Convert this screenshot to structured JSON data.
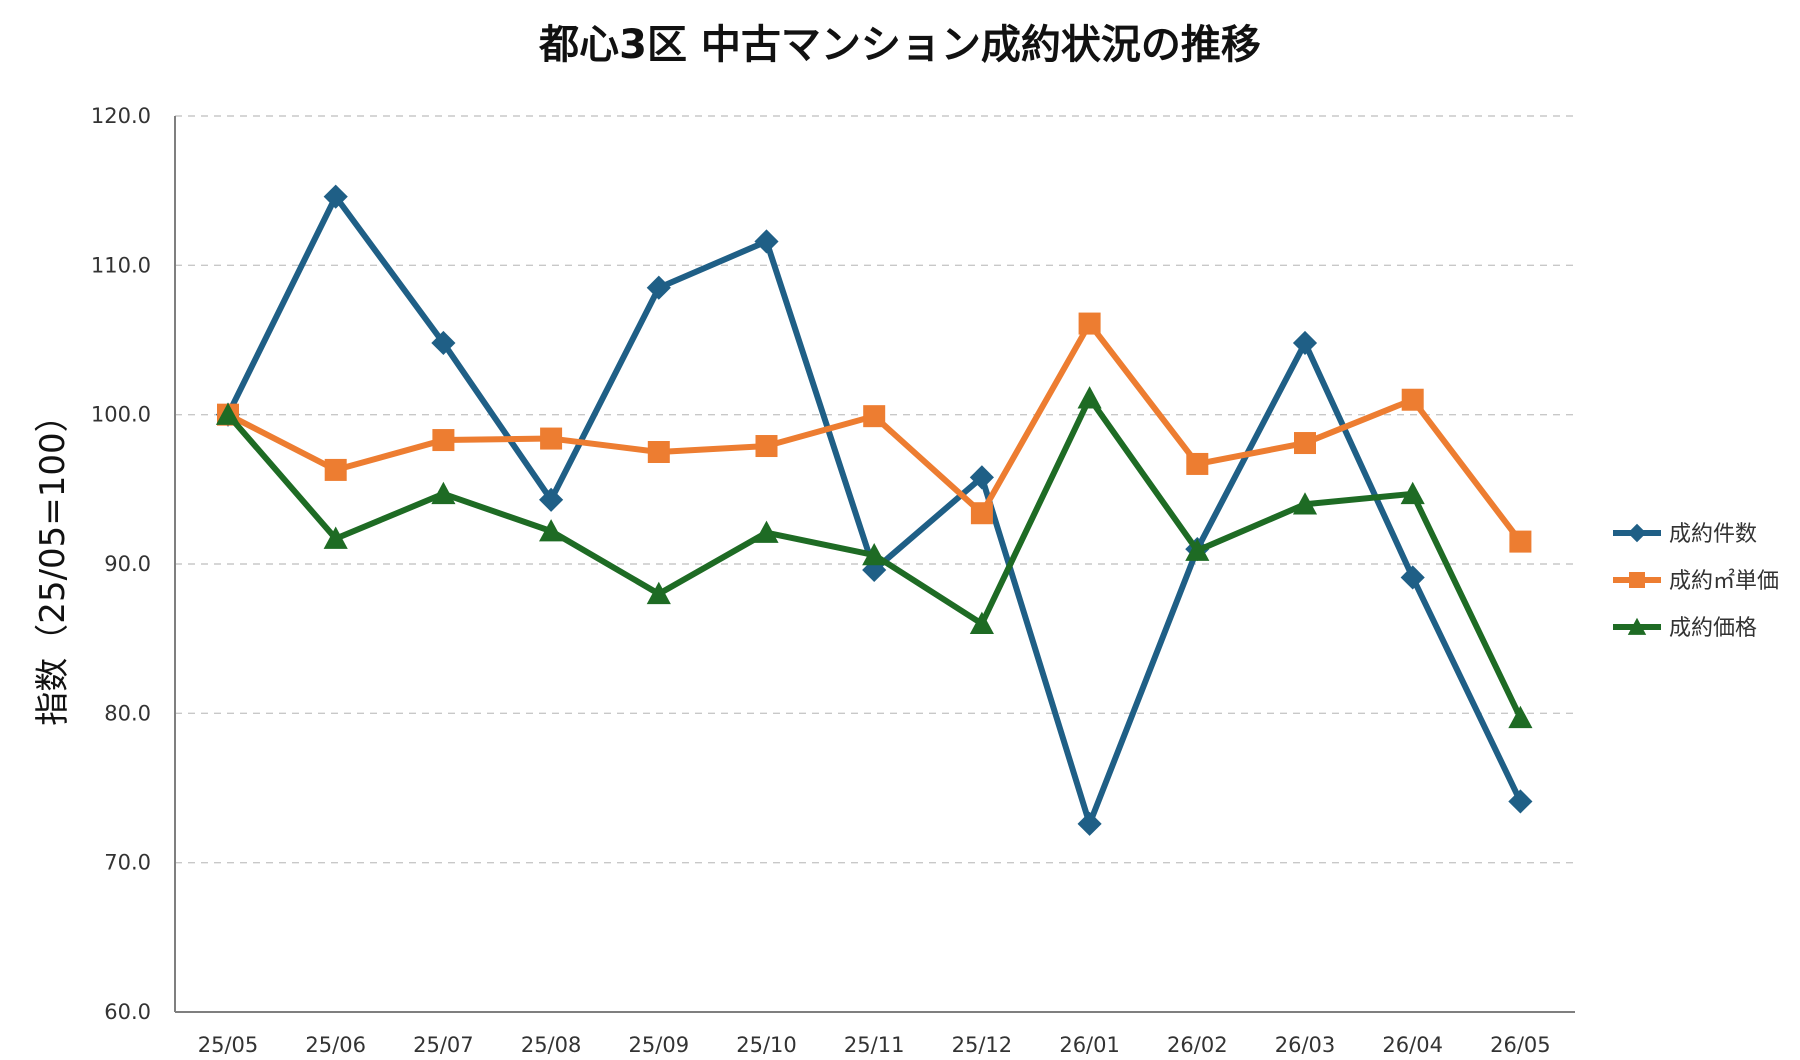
{
  "chart_data": {
    "type": "line",
    "title": "都心3区 中古マンション成約状況の推移",
    "xlabel": "",
    "ylabel": "指数（25/05=100）",
    "ylim": [
      60.0,
      120.0
    ],
    "yticks": [
      "60.0",
      "70.0",
      "80.0",
      "90.0",
      "100.0",
      "110.0",
      "120.0"
    ],
    "grid": true,
    "legend_position": "right",
    "categories": [
      "25/05",
      "25/06",
      "25/07",
      "25/08",
      "25/09",
      "25/10",
      "25/11",
      "25/12",
      "26/01",
      "26/02",
      "26/03",
      "26/04",
      "26/05"
    ],
    "series": [
      {
        "name": "成約件数",
        "color": "#1f5f86",
        "marker": "diamond",
        "values": [
          100.0,
          114.6,
          104.8,
          94.3,
          108.5,
          111.6,
          89.6,
          95.8,
          72.6,
          91.0,
          104.8,
          89.1,
          74.1
        ]
      },
      {
        "name": "成約㎡単価",
        "color": "#ed7d31",
        "marker": "square",
        "values": [
          100.0,
          96.3,
          98.3,
          98.4,
          97.5,
          97.9,
          99.9,
          93.4,
          106.1,
          96.7,
          98.1,
          101.0,
          91.5
        ]
      },
      {
        "name": "成約価格",
        "color": "#1e6b24",
        "marker": "triangle",
        "values": [
          100.0,
          91.7,
          94.7,
          92.2,
          88.0,
          92.1,
          90.6,
          86.0,
          101.1,
          90.9,
          94.0,
          94.7,
          79.7
        ]
      }
    ]
  }
}
